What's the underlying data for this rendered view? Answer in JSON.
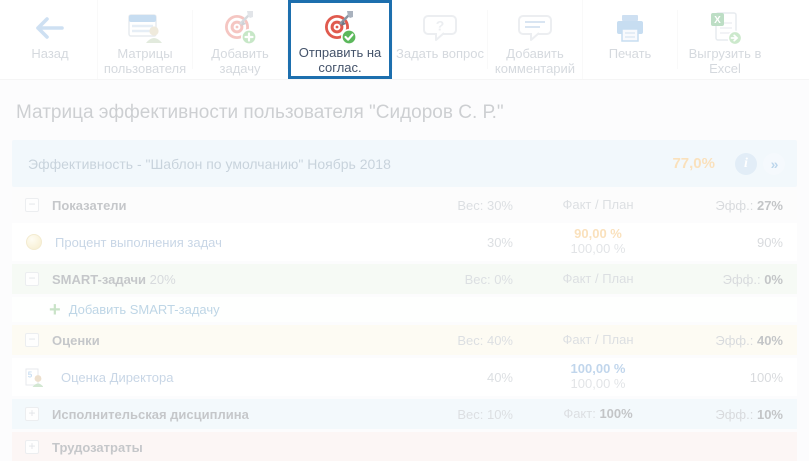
{
  "toolbar": {
    "buttons": [
      {
        "name": "back-button",
        "icon": "back-icon",
        "label": "Назад"
      },
      {
        "name": "user-matrices-button",
        "icon": "user-matrices-icon",
        "label": "Матрицы пользователя"
      },
      {
        "name": "add-task-button",
        "icon": "target-plus-icon",
        "label": "Добавить задачу"
      },
      {
        "name": "send-for-approval-button",
        "icon": "target-check-icon",
        "label": "Отправить на соглас.",
        "highlighted": true
      },
      {
        "name": "ask-question-button",
        "icon": "question-bubble-icon",
        "label": "Задать вопрос"
      },
      {
        "name": "add-comment-button",
        "icon": "comment-bubble-icon",
        "label": "Добавить комментарий"
      },
      {
        "name": "print-button",
        "icon": "printer-icon",
        "label": "Печать"
      },
      {
        "name": "export-excel-button",
        "icon": "excel-export-icon",
        "label": "Выгрузить в Excel"
      }
    ]
  },
  "page": {
    "title": "Матрица эффективности пользователя \"Сидоров С. Р.\""
  },
  "panel": {
    "header": {
      "title": "Эффективность - \"Шаблон по умолчанию\" Ноябрь 2018",
      "value": "77,0%",
      "icons": [
        "info-icon",
        "forward-icon"
      ]
    },
    "rows": [
      {
        "kind": "group",
        "toggle": "minus",
        "tint": "plain",
        "label": "Показатели",
        "weight": "Вес: 30%",
        "fact": "Факт / План",
        "fact_strong": "",
        "eff_label": "Эфф.:",
        "eff_value": "27%"
      },
      {
        "kind": "item",
        "icon": "ball",
        "label": "Процент выполнения задач",
        "weight": "30%",
        "fact_top": "90,00 %",
        "fact_top_color": "#f0a63c",
        "fact_bottom": "100,00 %",
        "eff": "90%"
      },
      {
        "kind": "group",
        "toggle": "minus",
        "tint": "green",
        "label": "SMART-задачи",
        "label_suffix": "20%",
        "weight": "Вес: 0%",
        "fact": "Факт / План",
        "fact_strong": "",
        "eff_label": "Эфф.:",
        "eff_value": "0%"
      },
      {
        "kind": "add",
        "label": "Добавить SMART-задачу"
      },
      {
        "kind": "group",
        "toggle": "minus",
        "tint": "yellow",
        "label": "Оценки",
        "weight": "Вес: 40%",
        "fact": "Факт / План",
        "fact_strong": "",
        "eff_label": "Эфф.:",
        "eff_value": "40%"
      },
      {
        "kind": "item",
        "icon": "grade",
        "label": "Оценка Директора",
        "weight": "40%",
        "fact_top": "100,00 %",
        "fact_top_color": "#4a86c8",
        "fact_bottom": "100,00 %",
        "eff": "100%"
      },
      {
        "kind": "group",
        "toggle": "plus",
        "tint": "cyan",
        "label": "Исполнительская дисциплина",
        "weight": "Вес: 10%",
        "fact": "Факт:",
        "fact_strong": "100%",
        "eff_label": "Эфф.:",
        "eff_value": "10%"
      },
      {
        "kind": "group",
        "toggle": "plus",
        "tint": "pink",
        "label": "Трудозатраты",
        "weight": "",
        "fact": "",
        "fact_strong": "",
        "eff_label": "",
        "eff_value": ""
      }
    ]
  },
  "colors": {
    "highlight_border": "#1d6fae",
    "accent_orange": "#f0a63c",
    "accent_blue": "#4a86c8",
    "link_blue": "#4187b5",
    "success_green": "#5cb85c",
    "target_red": "#e05a4e"
  }
}
